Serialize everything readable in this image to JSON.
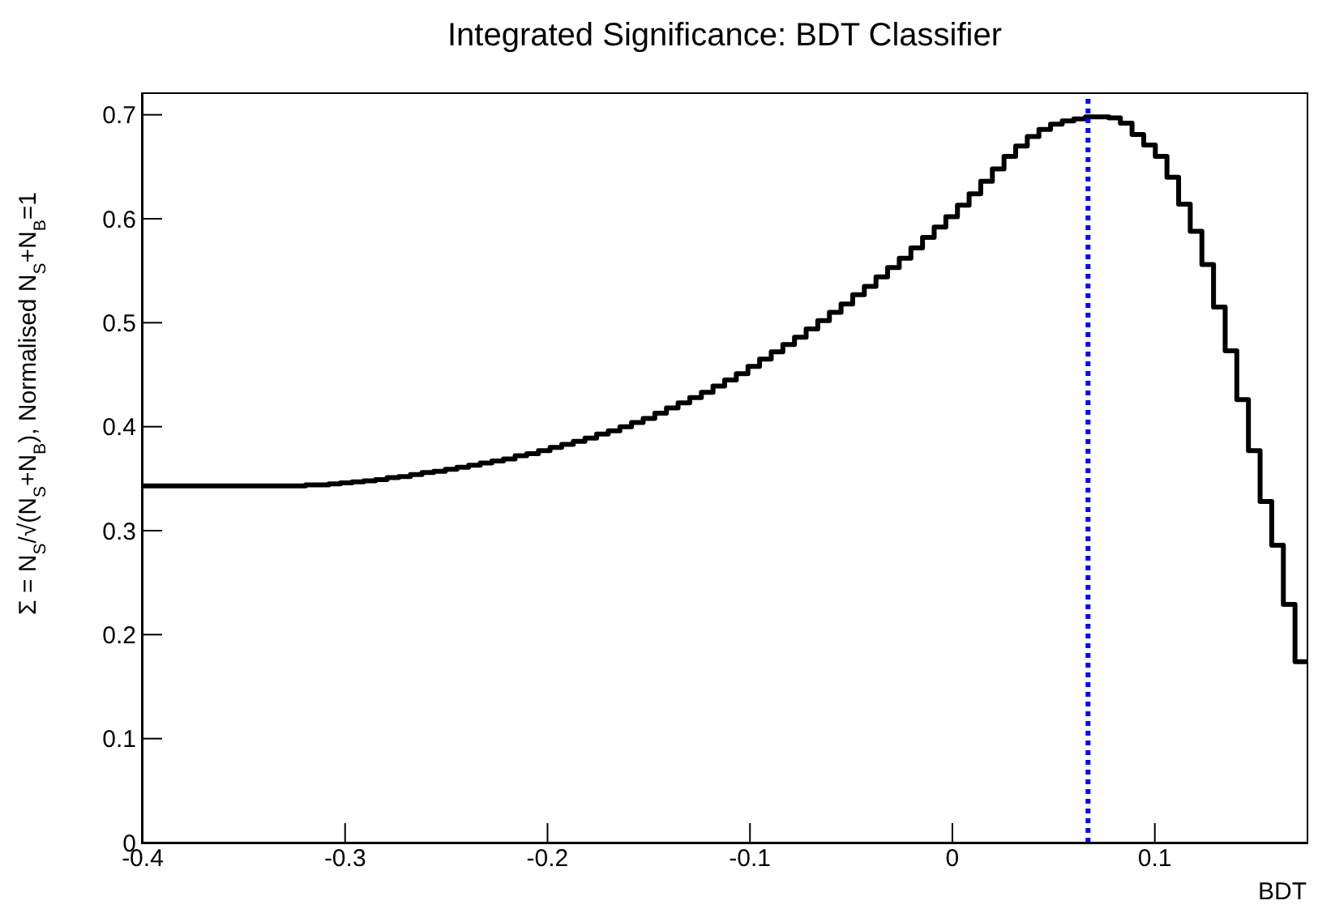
{
  "chart_data": {
    "type": "histogram",
    "title": "Integrated Significance: BDT Classifier",
    "xlabel": "BDT",
    "ylabel": "Σ = N$_{S}$/√(N$_{S}$+N$_{B}$), Normalised N$_{S}$+N$_{B}$=1",
    "bins": [
      -0.4,
      -0.39425,
      -0.3885,
      -0.38275,
      -0.377,
      -0.37125,
      -0.3655,
      -0.35975,
      -0.354,
      -0.34825,
      -0.3425,
      -0.33675,
      -0.331,
      -0.32525,
      -0.3195,
      -0.31375,
      -0.308,
      -0.30225,
      -0.2965,
      -0.29075,
      -0.285,
      -0.27925,
      -0.2735,
      -0.26775,
      -0.262,
      -0.25625,
      -0.2505,
      -0.24475,
      -0.239,
      -0.23325,
      -0.2275,
      -0.22175,
      -0.216,
      -0.21025,
      -0.2045,
      -0.19875,
      -0.193,
      -0.18725,
      -0.1815,
      -0.17575,
      -0.17,
      -0.16425,
      -0.1585,
      -0.15275,
      -0.147,
      -0.14125,
      -0.1355,
      -0.12975,
      -0.124,
      -0.11825,
      -0.1125,
      -0.10675,
      -0.101,
      -0.09525,
      -0.0895,
      -0.08375,
      -0.078,
      -0.07225,
      -0.0665,
      -0.06075,
      -0.055,
      -0.04925,
      -0.0435,
      -0.03775,
      -0.032,
      -0.02625,
      -0.0205,
      -0.01475,
      -0.009,
      -0.00325,
      0.0025,
      0.00825,
      0.014,
      0.01975,
      0.0255,
      0.03125,
      0.037,
      0.04275,
      0.0485,
      0.05425,
      0.06,
      0.06575,
      0.0715,
      0.07725,
      0.083,
      0.08875,
      0.0945,
      0.10025,
      0.106,
      0.11175,
      0.1175,
      0.12325,
      0.129,
      0.13475,
      0.1405,
      0.14625,
      0.152,
      0.15775,
      0.1635,
      0.16925,
      0.175
    ],
    "values": [
      0.343,
      0.343,
      0.343,
      0.343,
      0.343,
      0.343,
      0.343,
      0.343,
      0.343,
      0.343,
      0.343,
      0.343,
      0.343,
      0.343,
      0.344,
      0.344,
      0.345,
      0.346,
      0.347,
      0.348,
      0.349,
      0.351,
      0.352,
      0.354,
      0.356,
      0.357,
      0.359,
      0.361,
      0.363,
      0.365,
      0.367,
      0.369,
      0.372,
      0.374,
      0.377,
      0.38,
      0.383,
      0.386,
      0.389,
      0.393,
      0.396,
      0.4,
      0.404,
      0.408,
      0.413,
      0.418,
      0.423,
      0.428,
      0.433,
      0.439,
      0.445,
      0.451,
      0.458,
      0.465,
      0.472,
      0.479,
      0.486,
      0.494,
      0.502,
      0.51,
      0.518,
      0.527,
      0.535,
      0.544,
      0.553,
      0.562,
      0.572,
      0.582,
      0.592,
      0.602,
      0.613,
      0.624,
      0.636,
      0.648,
      0.66,
      0.67,
      0.679,
      0.686,
      0.691,
      0.694,
      0.696,
      0.698,
      0.698,
      0.697,
      0.692,
      0.681,
      0.671,
      0.66,
      0.64,
      0.614,
      0.588,
      0.556,
      0.515,
      0.473,
      0.426,
      0.377,
      0.328,
      0.286,
      0.229,
      0.174
    ],
    "color": "#000000",
    "xlim": [
      -0.4,
      0.175
    ],
    "xticks": [
      -0.4,
      -0.3,
      -0.2,
      -0.1,
      0,
      0.1
    ],
    "ylim": [
      0,
      0.72
    ],
    "yticks": [
      0,
      0.1,
      0.2,
      0.3,
      0.4,
      0.5,
      0.6,
      0.7
    ],
    "ref_lines": [
      {
        "axis": "x",
        "value": 0.067,
        "color": "#0000ff",
        "line_style": "dotted"
      }
    ],
    "grid": false
  }
}
